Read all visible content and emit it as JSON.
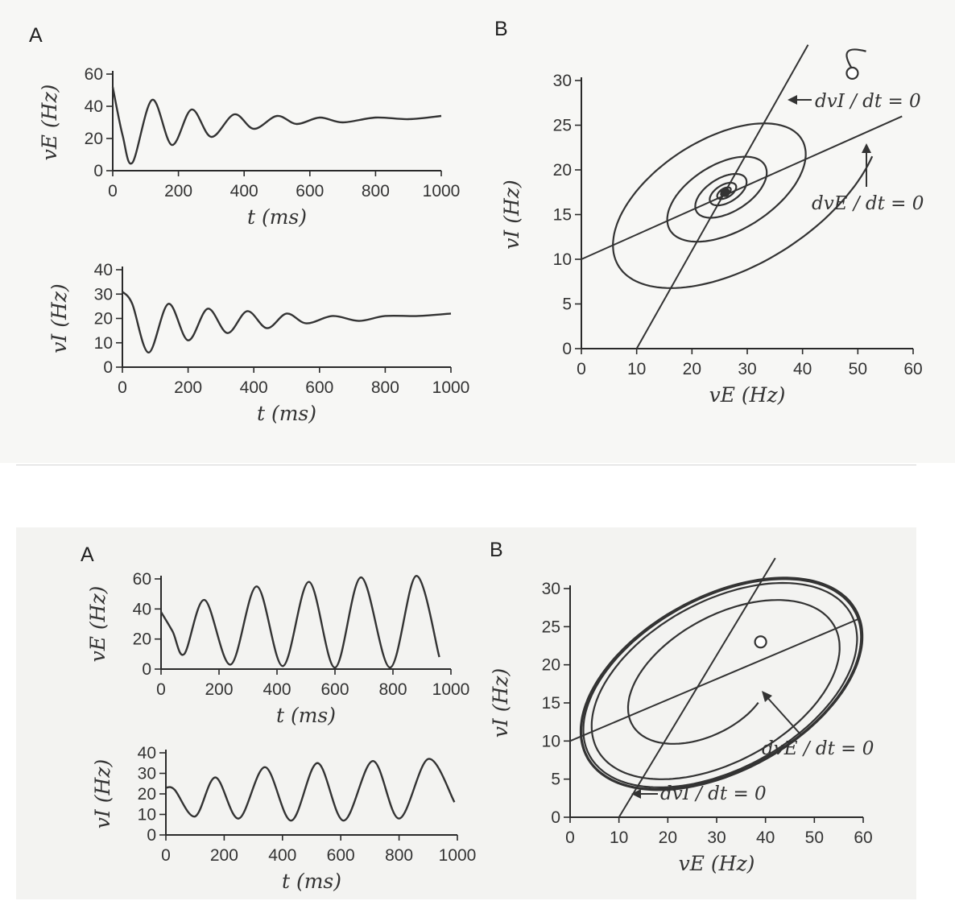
{
  "chart_data": [
    {
      "id": "top-A-vE",
      "panel": "A",
      "type": "line",
      "xlabel": "t (ms)",
      "ylabel": "vE (Hz)",
      "xlim": [
        0,
        1000
      ],
      "ylim": [
        0,
        60
      ],
      "xticks": [
        0,
        200,
        400,
        600,
        800,
        1000
      ],
      "yticks": [
        0,
        20,
        40,
        60
      ],
      "series": [
        {
          "x": [
            0,
            30,
            60,
            120,
            180,
            240,
            300,
            370,
            430,
            500,
            560,
            630,
            700,
            800,
            900,
            1000
          ],
          "values": [
            52,
            22,
            5,
            44,
            16,
            38,
            21,
            35,
            26,
            34,
            29,
            33,
            30,
            33,
            32,
            34
          ]
        }
      ]
    },
    {
      "id": "top-A-vI",
      "panel": "",
      "type": "line",
      "xlabel": "t (ms)",
      "ylabel": "vI (Hz)",
      "xlim": [
        0,
        1000
      ],
      "ylim": [
        0,
        40
      ],
      "xticks": [
        0,
        200,
        400,
        600,
        800,
        1000
      ],
      "yticks": [
        0,
        10,
        20,
        30,
        40
      ],
      "series": [
        {
          "x": [
            0,
            30,
            80,
            140,
            200,
            260,
            320,
            380,
            440,
            500,
            560,
            640,
            720,
            800,
            900,
            1000
          ],
          "values": [
            31,
            26,
            6,
            26,
            11,
            24,
            14,
            23,
            16,
            22,
            18,
            21,
            19,
            21,
            21,
            22
          ]
        }
      ]
    },
    {
      "id": "top-B",
      "panel": "B",
      "type": "line",
      "xlabel": "vE (Hz)",
      "ylabel": "vI (Hz)",
      "xlim": [
        0,
        60
      ],
      "ylim": [
        0,
        30
      ],
      "xticks": [
        0,
        10,
        20,
        30,
        40,
        50,
        60
      ],
      "yticks": [
        0,
        5,
        10,
        15,
        20,
        25,
        30
      ],
      "fixed_point": [
        26,
        17.5
      ],
      "start_point": [
        49,
        31
      ],
      "nullclines": [
        {
          "name": "dvI/dt = 0",
          "x1": 10,
          "y1": 0,
          "x2": 41,
          "y2": 34
        },
        {
          "name": "dvE/dt = 0",
          "x1": 0,
          "y1": 10,
          "x2": 58,
          "y2": 26
        }
      ],
      "annotations": [
        "dvI / dt = 0",
        "dvE / dt = 0"
      ]
    },
    {
      "id": "bottom-A-vE",
      "panel": "A",
      "type": "line",
      "xlabel": "t (ms)",
      "ylabel": "vE (Hz)",
      "xlim": [
        0,
        1000
      ],
      "ylim": [
        0,
        60
      ],
      "xticks": [
        0,
        200,
        400,
        600,
        800,
        1000
      ],
      "yticks": [
        0,
        20,
        40,
        60
      ],
      "series": [
        {
          "x": [
            0,
            40,
            80,
            150,
            240,
            330,
            420,
            510,
            600,
            690,
            790,
            880,
            960
          ],
          "values": [
            38,
            25,
            10,
            46,
            3,
            55,
            2,
            58,
            1,
            61,
            1,
            62,
            8
          ]
        }
      ]
    },
    {
      "id": "bottom-A-vI",
      "panel": "",
      "type": "line",
      "xlabel": "t (ms)",
      "ylabel": "vI (Hz)",
      "xlim": [
        0,
        1000
      ],
      "ylim": [
        0,
        40
      ],
      "xticks": [
        0,
        200,
        400,
        600,
        800,
        1000
      ],
      "yticks": [
        0,
        10,
        20,
        30,
        40
      ],
      "series": [
        {
          "x": [
            0,
            30,
            100,
            170,
            250,
            340,
            430,
            520,
            610,
            710,
            800,
            900,
            990
          ],
          "values": [
            23,
            22,
            9,
            28,
            8,
            33,
            7,
            35,
            7,
            36,
            8,
            37,
            16
          ]
        }
      ]
    },
    {
      "id": "bottom-B",
      "panel": "B",
      "type": "line",
      "xlabel": "vE (Hz)",
      "ylabel": "vI (Hz)",
      "xlim": [
        0,
        60
      ],
      "ylim": [
        0,
        30
      ],
      "xticks": [
        0,
        10,
        20,
        30,
        40,
        50,
        60
      ],
      "yticks": [
        0,
        5,
        10,
        15,
        20,
        25,
        30
      ],
      "start_point": [
        39,
        23
      ],
      "nullclines": [
        {
          "name": "dvI/dt = 0",
          "x1": 10,
          "y1": 0,
          "x2": 42,
          "y2": 34
        },
        {
          "name": "dvE/dt = 0",
          "x1": 0,
          "y1": 10,
          "x2": 59,
          "y2": 26
        }
      ],
      "annotations": [
        "dvE / dt = 0",
        "dvI / dt = 0"
      ]
    }
  ]
}
